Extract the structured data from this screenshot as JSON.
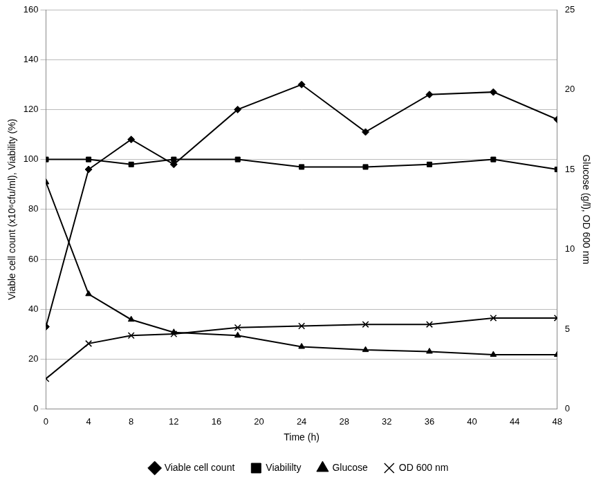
{
  "chart_data": {
    "type": "line",
    "x_label": "Time (h)",
    "y_label": "Viable cell count (x10⁶cfu/ml), Viability (%)",
    "y2_label": "Glucose (g/l), OD 600 nm",
    "x": [
      0,
      4,
      8,
      12,
      18,
      24,
      30,
      36,
      42,
      48
    ],
    "xlim": [
      0,
      48
    ],
    "xticks": [
      0,
      4,
      8,
      12,
      16,
      20,
      24,
      28,
      32,
      36,
      40,
      44,
      48
    ],
    "ylim": [
      0,
      160
    ],
    "yticks": [
      0,
      20,
      40,
      60,
      80,
      100,
      120,
      140,
      160
    ],
    "y2lim": [
      0,
      25
    ],
    "y2ticks": [
      0,
      5,
      10,
      15,
      20,
      25
    ],
    "grid": true,
    "legend": "bottom",
    "series": [
      {
        "name": "Viable cell count",
        "color": "#000000",
        "marker": "diamond",
        "axis": "y",
        "values": [
          33,
          96,
          108,
          98,
          120,
          130,
          111,
          126,
          127,
          116
        ]
      },
      {
        "name": "Viabililty",
        "color": "#000000",
        "marker": "square",
        "axis": "y",
        "values": [
          100,
          100,
          98,
          100,
          100,
          97,
          97,
          98,
          100,
          96
        ]
      },
      {
        "name": "Glucose",
        "color": "#000000",
        "marker": "triangle",
        "axis": "y2",
        "values": [
          14.2,
          7.2,
          5.6,
          4.8,
          4.6,
          3.9,
          3.7,
          3.6,
          3.4,
          3.4
        ]
      },
      {
        "name": "OD 600 nm",
        "color": "#000000",
        "marker": "x",
        "axis": "y2",
        "values": [
          1.9,
          4.1,
          4.6,
          4.7,
          5.1,
          5.2,
          5.3,
          5.3,
          5.7,
          5.7
        ]
      }
    ]
  }
}
